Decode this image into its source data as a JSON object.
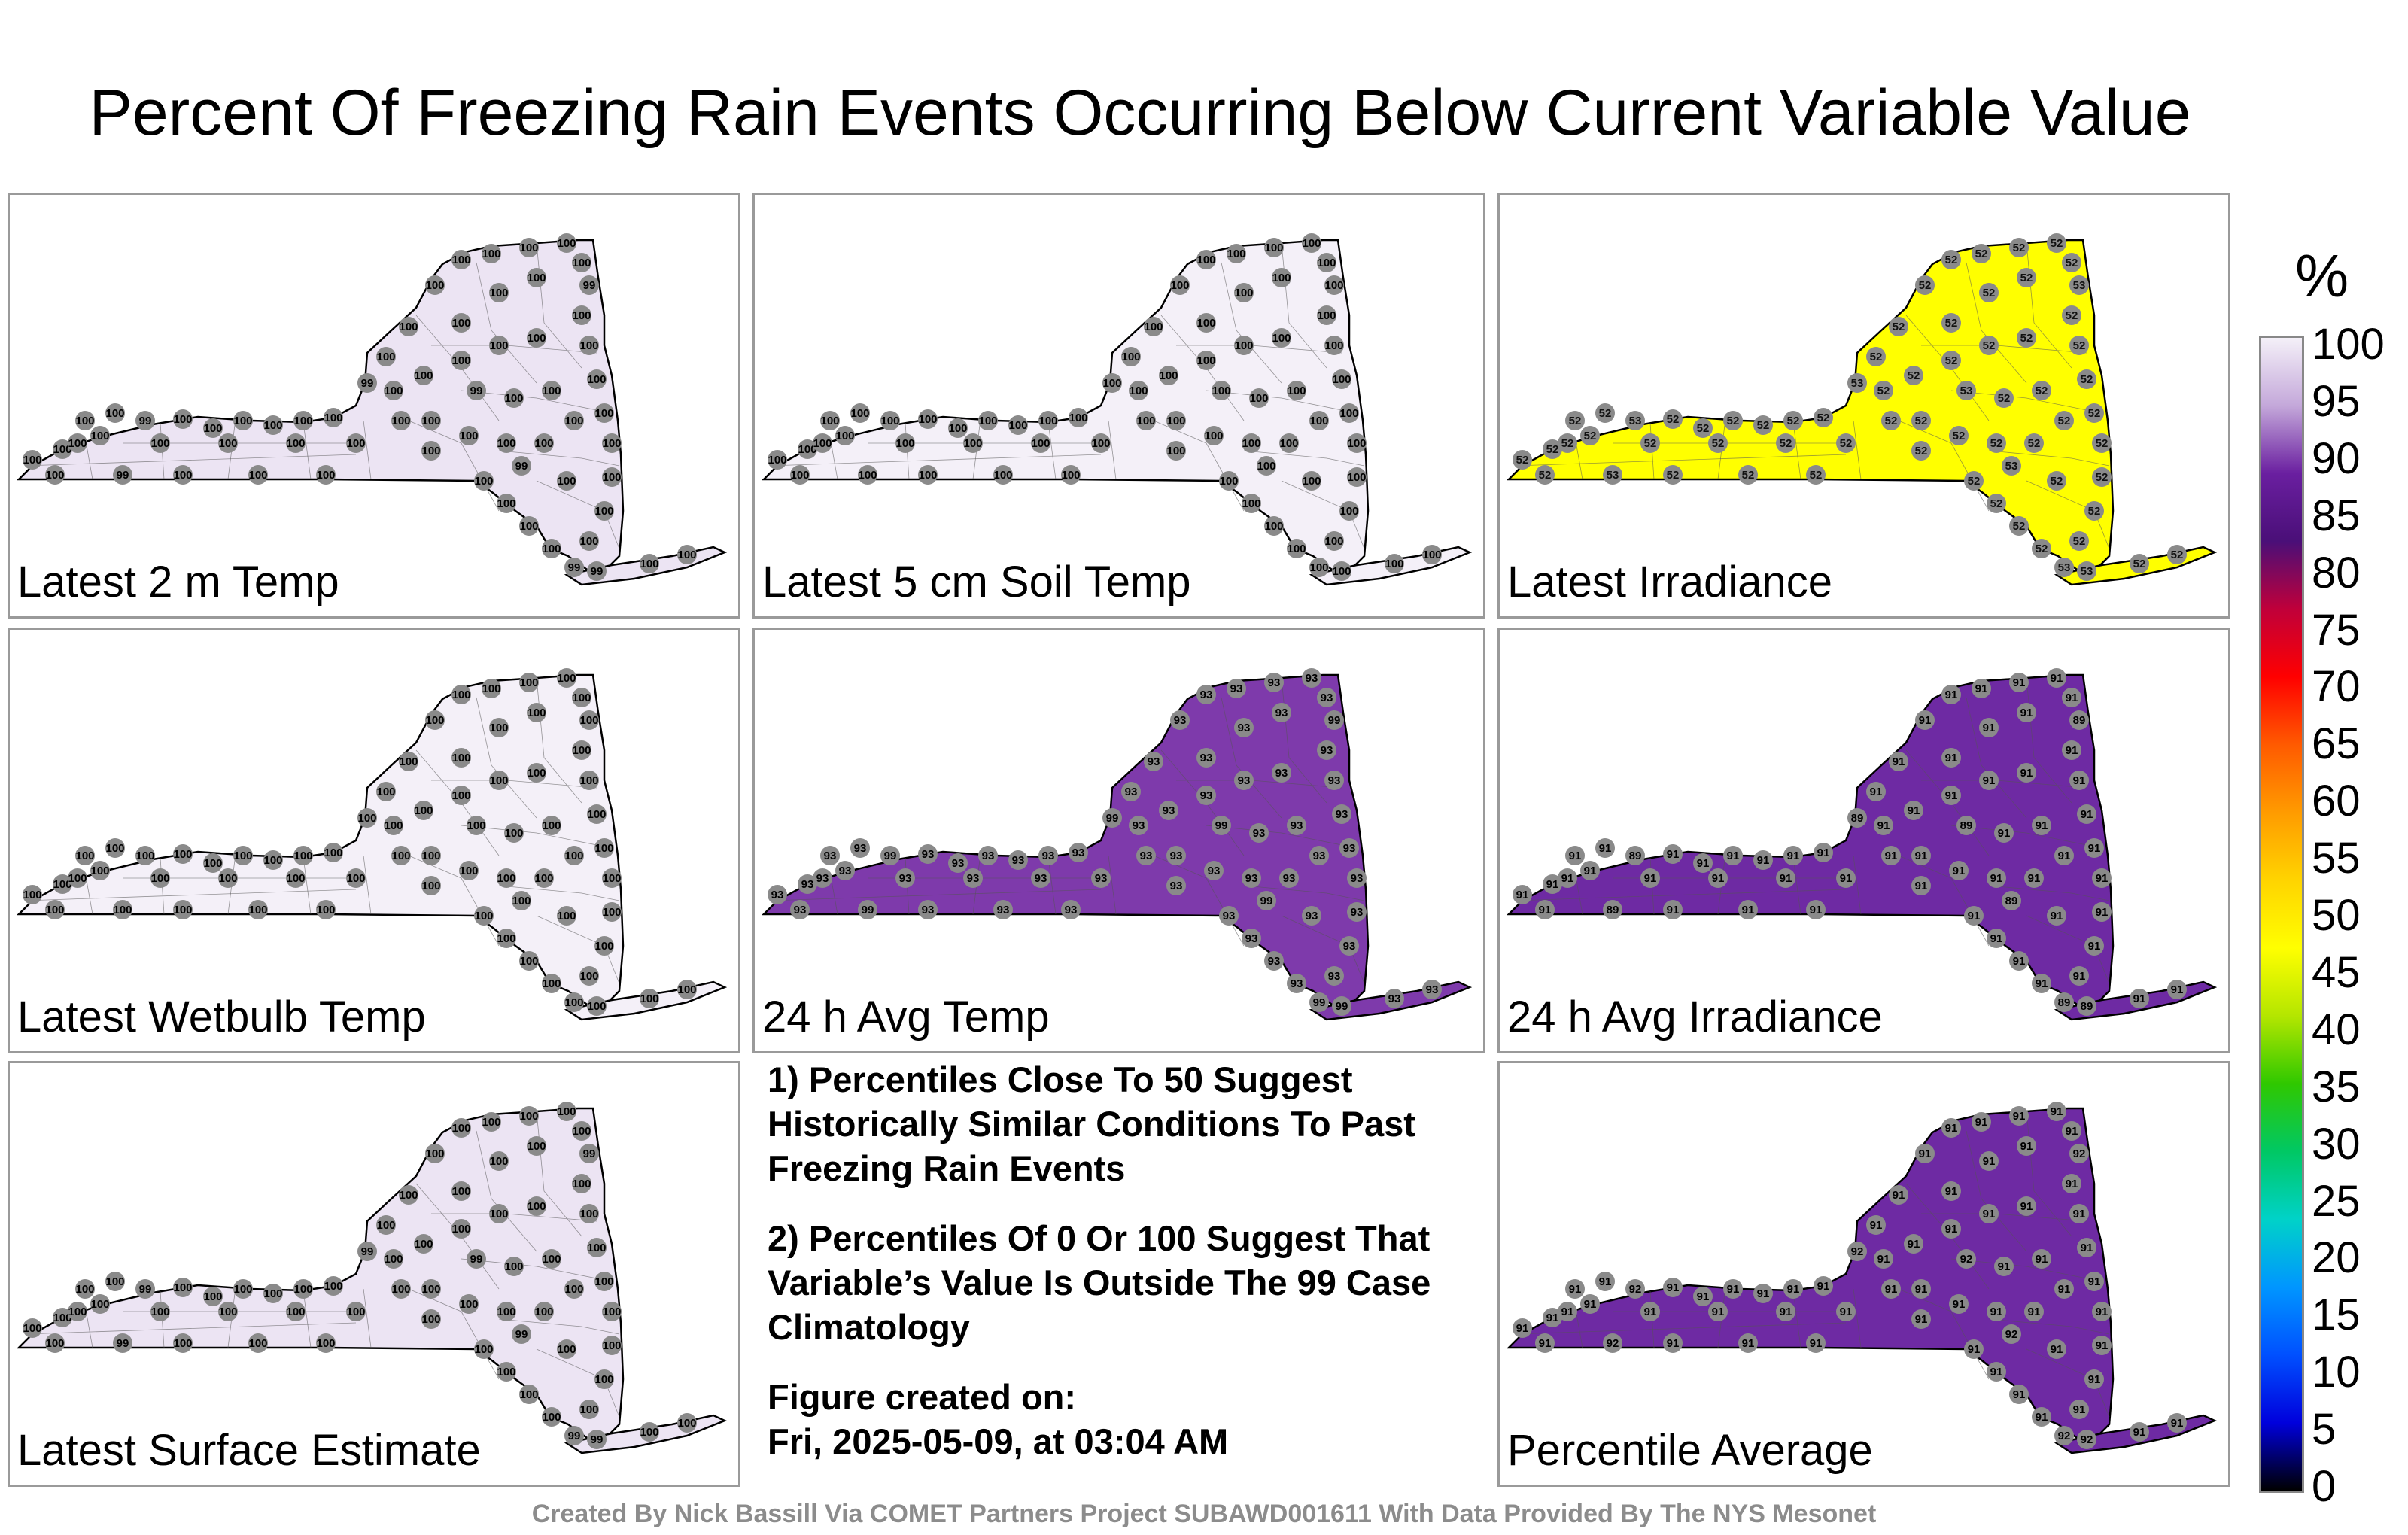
{
  "title": "Percent Of Freezing Rain Events Occurring Below Current Variable Value",
  "panels": [
    {
      "label": "Latest 2 m Temp",
      "value": "100",
      "alt_value": "99",
      "fill": "#ece4f3"
    },
    {
      "label": "Latest 5 cm Soil Temp",
      "value": "100",
      "alt_value": "100",
      "fill": "#f4f0f8"
    },
    {
      "label": "Latest Irradiance",
      "value": "52",
      "alt_value": "53",
      "fill": "#ffff00"
    },
    {
      "label": "Latest Wetbulb Temp",
      "value": "100",
      "alt_value": "100",
      "fill": "#f4f0f8"
    },
    {
      "label": "24 h Avg Temp",
      "value": "93",
      "alt_value": "99",
      "fill": "#7e3aab"
    },
    {
      "label": "24 h Avg Irradiance",
      "value": "91",
      "alt_value": "89",
      "fill": "#6e2aa3"
    },
    {
      "label": "Latest Surface Estimate",
      "value": "100",
      "alt_value": "99",
      "fill": "#ece4f3"
    },
    {
      "label": "Percentile Average",
      "value": "91",
      "alt_value": "92",
      "fill": "#6e2aa3"
    }
  ],
  "notes": {
    "note1": "1) Percentiles Close To 50 Suggest Historically Similar Conditions To Past Freezing Rain Events",
    "note2": "2) Percentiles Of 0 Or 100 Suggest That Variable’s Value Is Outside The 99 Case Climatology",
    "created_label": "Figure created on:",
    "created_value": "Fri, 2025-05-09, at 03:04 AM"
  },
  "footer": "Created By Nick Bassill Via COMET Partners Project SUBAWD001611 With Data Provided By The NYS Mesonet",
  "colorbar": {
    "unit": "%",
    "ticks": [
      "100",
      "95",
      "90",
      "85",
      "80",
      "75",
      "70",
      "65",
      "60",
      "55",
      "50",
      "45",
      "40",
      "35",
      "30",
      "25",
      "20",
      "15",
      "10",
      "5",
      "0"
    ],
    "stops": [
      "#f4f0f8",
      "#c4a8da",
      "#6a1fa0",
      "#4a0f78",
      "#c0003a",
      "#ff0000",
      "#ff5a00",
      "#ff9b00",
      "#ffd400",
      "#ffff00",
      "#b4e600",
      "#2fc800",
      "#00c864",
      "#00d2c8",
      "#0096ff",
      "#0050ff",
      "#0000dc",
      "#000000"
    ]
  }
}
